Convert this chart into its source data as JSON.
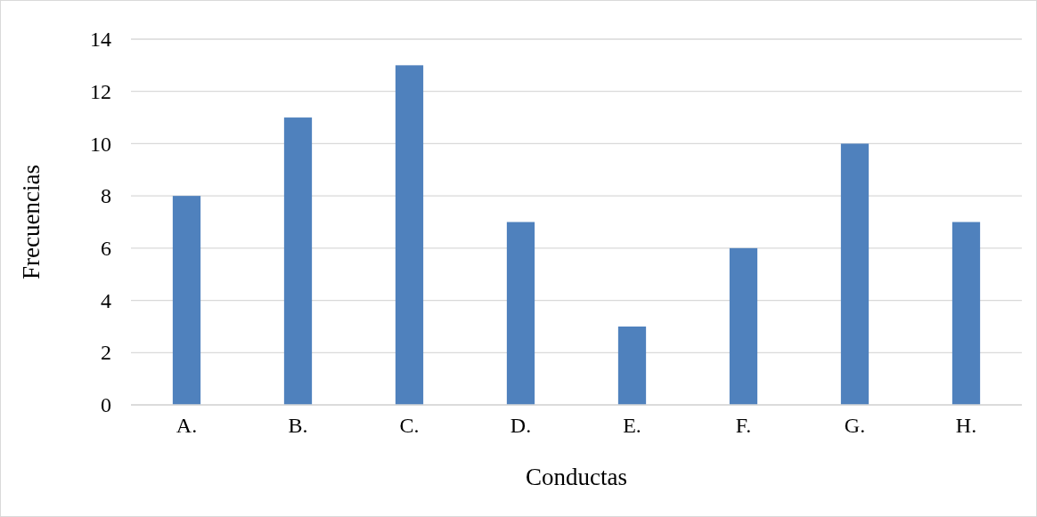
{
  "chart_data": {
    "type": "bar",
    "xlabel": "Conductas",
    "ylabel": "Frecuencias",
    "categories": [
      "A.",
      "B.",
      "C.",
      "D.",
      "E.",
      "F.",
      "G.",
      "H."
    ],
    "values": [
      8,
      11,
      13,
      7,
      3,
      6,
      10,
      7
    ],
    "color": "#4f81bd",
    "ylim": [
      0,
      14
    ],
    "yticks": [
      0,
      2,
      4,
      6,
      8,
      10,
      12,
      14
    ],
    "grid": "y"
  }
}
